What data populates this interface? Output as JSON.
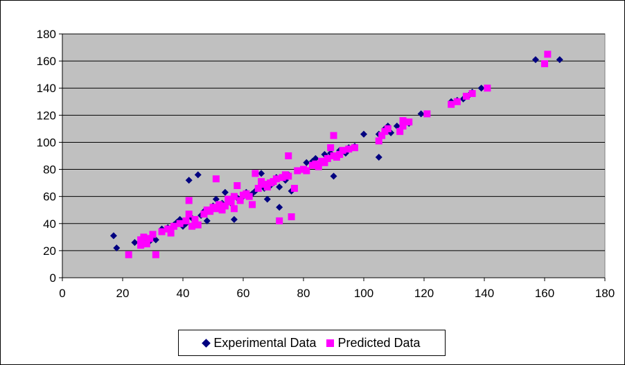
{
  "chart_data": {
    "type": "scatter",
    "xlim": [
      0,
      180
    ],
    "ylim": [
      0,
      180
    ],
    "x_ticks": [
      0,
      20,
      40,
      60,
      80,
      100,
      120,
      140,
      160,
      180
    ],
    "y_ticks": [
      0,
      20,
      40,
      60,
      80,
      100,
      120,
      140,
      160,
      180
    ],
    "grid": "horizontal",
    "plot_background": "#c0c0c0",
    "legend_position": "bottom",
    "series": [
      {
        "name": "Experimental Data",
        "marker": "diamond",
        "color": "#000080",
        "points": [
          [
            17,
            31
          ],
          [
            18,
            22
          ],
          [
            24,
            26
          ],
          [
            26,
            27
          ],
          [
            27,
            25
          ],
          [
            28,
            28
          ],
          [
            29,
            27
          ],
          [
            30,
            31
          ],
          [
            31,
            28
          ],
          [
            33,
            36
          ],
          [
            35,
            37
          ],
          [
            37,
            39
          ],
          [
            38,
            41
          ],
          [
            39,
            43
          ],
          [
            40,
            38
          ],
          [
            41,
            40
          ],
          [
            42,
            72
          ],
          [
            43,
            44
          ],
          [
            44,
            42
          ],
          [
            45,
            76
          ],
          [
            46,
            46
          ],
          [
            47,
            49
          ],
          [
            48,
            42
          ],
          [
            49,
            50
          ],
          [
            50,
            53
          ],
          [
            51,
            58
          ],
          [
            52,
            52
          ],
          [
            53,
            55
          ],
          [
            54,
            63
          ],
          [
            55,
            57
          ],
          [
            56,
            55
          ],
          [
            57,
            43
          ],
          [
            58,
            59
          ],
          [
            59,
            58
          ],
          [
            60,
            60
          ],
          [
            61,
            63
          ],
          [
            62,
            61
          ],
          [
            63,
            62
          ],
          [
            64,
            64
          ],
          [
            66,
            77
          ],
          [
            67,
            66
          ],
          [
            68,
            58
          ],
          [
            69,
            68
          ],
          [
            70,
            70
          ],
          [
            71,
            74
          ],
          [
            72,
            52
          ],
          [
            72,
            67
          ],
          [
            74,
            72
          ],
          [
            75,
            76
          ],
          [
            76,
            64
          ],
          [
            78,
            79
          ],
          [
            80,
            80
          ],
          [
            81,
            85
          ],
          [
            83,
            86
          ],
          [
            84,
            88
          ],
          [
            85,
            82
          ],
          [
            87,
            91
          ],
          [
            88,
            88
          ],
          [
            89,
            92
          ],
          [
            90,
            75
          ],
          [
            91,
            90
          ],
          [
            92,
            94
          ],
          [
            94,
            92
          ],
          [
            95,
            96
          ],
          [
            97,
            97
          ],
          [
            100,
            106
          ],
          [
            105,
            89
          ],
          [
            105,
            106
          ],
          [
            107,
            110
          ],
          [
            108,
            112
          ],
          [
            109,
            107
          ],
          [
            111,
            112
          ],
          [
            113,
            113
          ],
          [
            115,
            114
          ],
          [
            119,
            121
          ],
          [
            129,
            130
          ],
          [
            131,
            131
          ],
          [
            133,
            132
          ],
          [
            135,
            135
          ],
          [
            136,
            137
          ],
          [
            139,
            140
          ],
          [
            157,
            161
          ],
          [
            165,
            161
          ]
        ]
      },
      {
        "name": "Predicted Data",
        "marker": "square",
        "color": "#ff00ff",
        "points": [
          [
            22,
            17
          ],
          [
            26,
            24
          ],
          [
            26,
            28
          ],
          [
            27,
            30
          ],
          [
            28,
            25
          ],
          [
            29,
            29
          ],
          [
            30,
            32
          ],
          [
            31,
            17
          ],
          [
            33,
            34
          ],
          [
            35,
            36
          ],
          [
            36,
            33
          ],
          [
            37,
            38
          ],
          [
            39,
            40
          ],
          [
            41,
            42
          ],
          [
            42,
            57
          ],
          [
            42,
            47
          ],
          [
            43,
            38
          ],
          [
            44,
            43
          ],
          [
            45,
            39
          ],
          [
            47,
            47
          ],
          [
            48,
            50
          ],
          [
            49,
            49
          ],
          [
            50,
            52
          ],
          [
            51,
            51
          ],
          [
            51,
            73
          ],
          [
            52,
            54
          ],
          [
            53,
            50
          ],
          [
            54,
            53
          ],
          [
            55,
            58
          ],
          [
            56,
            56
          ],
          [
            57,
            60
          ],
          [
            57,
            51
          ],
          [
            58,
            68
          ],
          [
            59,
            57
          ],
          [
            60,
            61
          ],
          [
            61,
            62
          ],
          [
            62,
            60
          ],
          [
            63,
            54
          ],
          [
            64,
            77
          ],
          [
            65,
            66
          ],
          [
            66,
            71
          ],
          [
            67,
            69
          ],
          [
            68,
            67
          ],
          [
            69,
            70
          ],
          [
            70,
            71
          ],
          [
            71,
            73
          ],
          [
            72,
            42
          ],
          [
            73,
            74
          ],
          [
            74,
            76
          ],
          [
            75,
            90
          ],
          [
            75,
            75
          ],
          [
            76,
            45
          ],
          [
            77,
            66
          ],
          [
            78,
            79
          ],
          [
            80,
            80
          ],
          [
            81,
            79
          ],
          [
            83,
            83
          ],
          [
            84,
            84
          ],
          [
            85,
            82
          ],
          [
            86,
            86
          ],
          [
            87,
            85
          ],
          [
            88,
            88
          ],
          [
            89,
            96
          ],
          [
            90,
            105
          ],
          [
            90,
            90
          ],
          [
            91,
            89
          ],
          [
            92,
            91
          ],
          [
            93,
            94
          ],
          [
            95,
            95
          ],
          [
            97,
            96
          ],
          [
            105,
            101
          ],
          [
            106,
            105
          ],
          [
            107,
            108
          ],
          [
            108,
            110
          ],
          [
            112,
            108
          ],
          [
            113,
            112
          ],
          [
            113,
            116
          ],
          [
            115,
            115
          ],
          [
            121,
            121
          ],
          [
            129,
            128
          ],
          [
            131,
            130
          ],
          [
            134,
            134
          ],
          [
            136,
            136
          ],
          [
            141,
            140
          ],
          [
            160,
            158
          ],
          [
            161,
            165
          ]
        ]
      }
    ]
  }
}
